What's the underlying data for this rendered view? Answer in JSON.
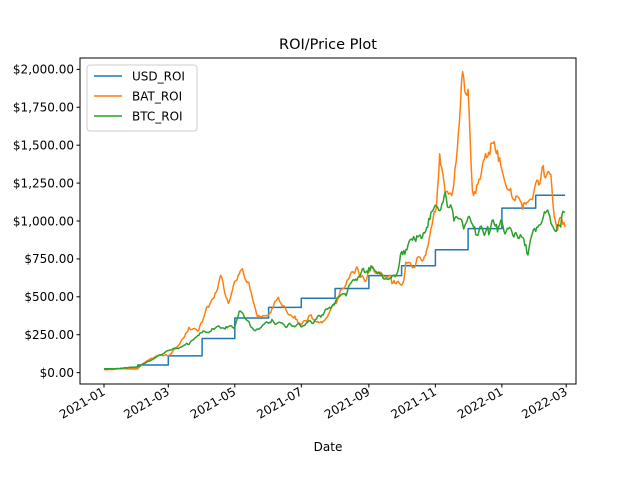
{
  "chart_data": {
    "type": "line",
    "title": "ROI/Price Plot",
    "xlabel": "Date",
    "ylabel": "",
    "x_ticks": [
      "2021-01",
      "2021-03",
      "2021-05",
      "2021-07",
      "2021-09",
      "2021-11",
      "2022-01",
      "2022-03"
    ],
    "y_ticks": [
      "$0.00",
      "$250.00",
      "$500.00",
      "$750.00",
      "$1,000.00",
      "$1,250.00",
      "$1,500.00",
      "$1,750.00",
      "$2,000.00"
    ],
    "xlim": [
      "2020-12-10",
      "2022-03-10"
    ],
    "ylim": [
      -75,
      2075
    ],
    "grid": false,
    "legend_position": "top-left",
    "series": [
      {
        "name": "USD_ROI",
        "color": "#1f77b4",
        "step": true,
        "points": [
          [
            "2021-01-01",
            25
          ],
          [
            "2021-02-01",
            50
          ],
          [
            "2021-03-01",
            110
          ],
          [
            "2021-04-01",
            225
          ],
          [
            "2021-05-01",
            360
          ],
          [
            "2021-06-01",
            430
          ],
          [
            "2021-07-01",
            490
          ],
          [
            "2021-08-01",
            555
          ],
          [
            "2021-09-01",
            640
          ],
          [
            "2021-10-01",
            705
          ],
          [
            "2021-11-01",
            810
          ],
          [
            "2021-12-01",
            950
          ],
          [
            "2022-01-01",
            1085
          ],
          [
            "2022-02-01",
            1170
          ],
          [
            "2022-02-28",
            1170
          ]
        ]
      },
      {
        "name": "BAT_ROI",
        "color": "#ff7f0e",
        "step": false,
        "points": [
          [
            "2021-01-01",
            20
          ],
          [
            "2021-01-15",
            25
          ],
          [
            "2021-02-01",
            30
          ],
          [
            "2021-02-10",
            80
          ],
          [
            "2021-02-20",
            120
          ],
          [
            "2021-03-01",
            110
          ],
          [
            "2021-03-10",
            175
          ],
          [
            "2021-03-20",
            300
          ],
          [
            "2021-03-28",
            280
          ],
          [
            "2021-04-05",
            420
          ],
          [
            "2021-04-12",
            500
          ],
          [
            "2021-04-18",
            640
          ],
          [
            "2021-04-25",
            470
          ],
          [
            "2021-05-01",
            600
          ],
          [
            "2021-05-08",
            690
          ],
          [
            "2021-05-15",
            550
          ],
          [
            "2021-05-22",
            380
          ],
          [
            "2021-06-01",
            380
          ],
          [
            "2021-06-10",
            490
          ],
          [
            "2021-06-20",
            370
          ],
          [
            "2021-07-01",
            330
          ],
          [
            "2021-07-10",
            370
          ],
          [
            "2021-07-20",
            320
          ],
          [
            "2021-08-01",
            450
          ],
          [
            "2021-08-10",
            600
          ],
          [
            "2021-08-20",
            680
          ],
          [
            "2021-08-28",
            600
          ],
          [
            "2021-09-05",
            700
          ],
          [
            "2021-09-15",
            640
          ],
          [
            "2021-09-25",
            600
          ],
          [
            "2021-10-01",
            560
          ],
          [
            "2021-10-05",
            720
          ],
          [
            "2021-10-12",
            700
          ],
          [
            "2021-10-20",
            750
          ],
          [
            "2021-10-25",
            800
          ],
          [
            "2021-11-01",
            1060
          ],
          [
            "2021-11-05",
            1380
          ],
          [
            "2021-11-10",
            1150
          ],
          [
            "2021-11-18",
            1200
          ],
          [
            "2021-11-25",
            1940
          ],
          [
            "2021-12-01",
            1800
          ],
          [
            "2021-12-05",
            1150
          ],
          [
            "2021-12-15",
            1350
          ],
          [
            "2021-12-25",
            1580
          ],
          [
            "2022-01-01",
            1290
          ],
          [
            "2022-01-10",
            1180
          ],
          [
            "2022-01-20",
            1080
          ],
          [
            "2022-02-01",
            1200
          ],
          [
            "2022-02-08",
            1320
          ],
          [
            "2022-02-15",
            1250
          ],
          [
            "2022-02-20",
            1000
          ],
          [
            "2022-02-28",
            960
          ]
        ]
      },
      {
        "name": "BTC_ROI",
        "color": "#2ca02c",
        "step": false,
        "points": [
          [
            "2021-01-01",
            25
          ],
          [
            "2021-01-15",
            28
          ],
          [
            "2021-02-01",
            40
          ],
          [
            "2021-02-15",
            90
          ],
          [
            "2021-03-01",
            150
          ],
          [
            "2021-03-15",
            170
          ],
          [
            "2021-04-01",
            260
          ],
          [
            "2021-04-15",
            300
          ],
          [
            "2021-05-01",
            300
          ],
          [
            "2021-05-05",
            400
          ],
          [
            "2021-05-12",
            350
          ],
          [
            "2021-05-20",
            280
          ],
          [
            "2021-06-01",
            330
          ],
          [
            "2021-06-15",
            320
          ],
          [
            "2021-07-01",
            310
          ],
          [
            "2021-07-15",
            350
          ],
          [
            "2021-08-01",
            460
          ],
          [
            "2021-08-15",
            560
          ],
          [
            "2021-09-01",
            700
          ],
          [
            "2021-09-10",
            630
          ],
          [
            "2021-09-25",
            620
          ],
          [
            "2021-10-01",
            800
          ],
          [
            "2021-10-15",
            880
          ],
          [
            "2021-10-25",
            950
          ],
          [
            "2021-11-01",
            1100
          ],
          [
            "2021-11-10",
            1130
          ],
          [
            "2021-11-20",
            1000
          ],
          [
            "2021-12-01",
            1000
          ],
          [
            "2021-12-10",
            930
          ],
          [
            "2021-12-20",
            960
          ],
          [
            "2022-01-01",
            960
          ],
          [
            "2022-01-15",
            920
          ],
          [
            "2022-01-25",
            800
          ],
          [
            "2022-02-05",
            1000
          ],
          [
            "2022-02-10",
            1050
          ],
          [
            "2022-02-20",
            920
          ],
          [
            "2022-02-28",
            1060
          ]
        ]
      }
    ]
  }
}
